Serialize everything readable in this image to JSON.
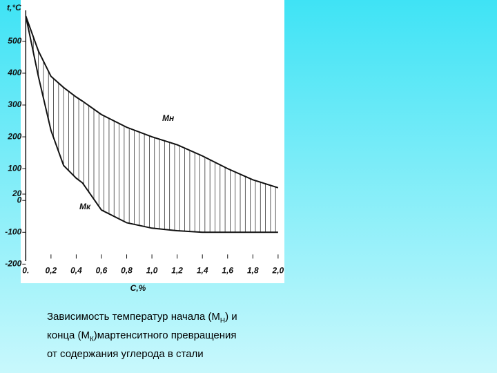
{
  "chart_data": {
    "type": "line",
    "ylabel": "t,°C",
    "xlabel": "C,%",
    "x": [
      0,
      0.1,
      0.2,
      0.3,
      0.4,
      0.45,
      0.6,
      0.8,
      1.0,
      1.2,
      1.4,
      1.6,
      1.8,
      2.0
    ],
    "series": [
      {
        "name": "Mн",
        "color": "#111111",
        "values": [
          580,
          470,
          390,
          355,
          325,
          312,
          270,
          230,
          200,
          175,
          140,
          100,
          65,
          40
        ]
      },
      {
        "name": "Mк",
        "color": "#111111",
        "values": [
          580,
          390,
          220,
          110,
          70,
          55,
          -30,
          -70,
          -87,
          -95,
          -100,
          -100,
          -100,
          -100
        ]
      }
    ],
    "xlim": [
      -0.04,
      2.05
    ],
    "ylim": [
      -260,
      630
    ],
    "xticks": [
      {
        "value": 0,
        "label": "0."
      },
      {
        "value": 0.2,
        "label": "0,2"
      },
      {
        "value": 0.4,
        "label": "0,4"
      },
      {
        "value": 0.6,
        "label": "0,6"
      },
      {
        "value": 0.8,
        "label": "0,8"
      },
      {
        "value": 1.0,
        "label": "1,0"
      },
      {
        "value": 1.2,
        "label": "1,2"
      },
      {
        "value": 1.4,
        "label": "1,4"
      },
      {
        "value": 1.6,
        "label": "1,6"
      },
      {
        "value": 1.8,
        "label": "1,8"
      },
      {
        "value": 2.0,
        "label": "2,0"
      }
    ],
    "yticks": [
      500,
      400,
      300,
      200,
      100,
      20,
      0,
      -100,
      -200
    ]
  },
  "caption": [
    "Зависимость температур начала (M",
    "Н",
    ") и",
    "конца (M",
    "К",
    ")мартенситного превращения",
    "от содержания углерода в стали"
  ]
}
